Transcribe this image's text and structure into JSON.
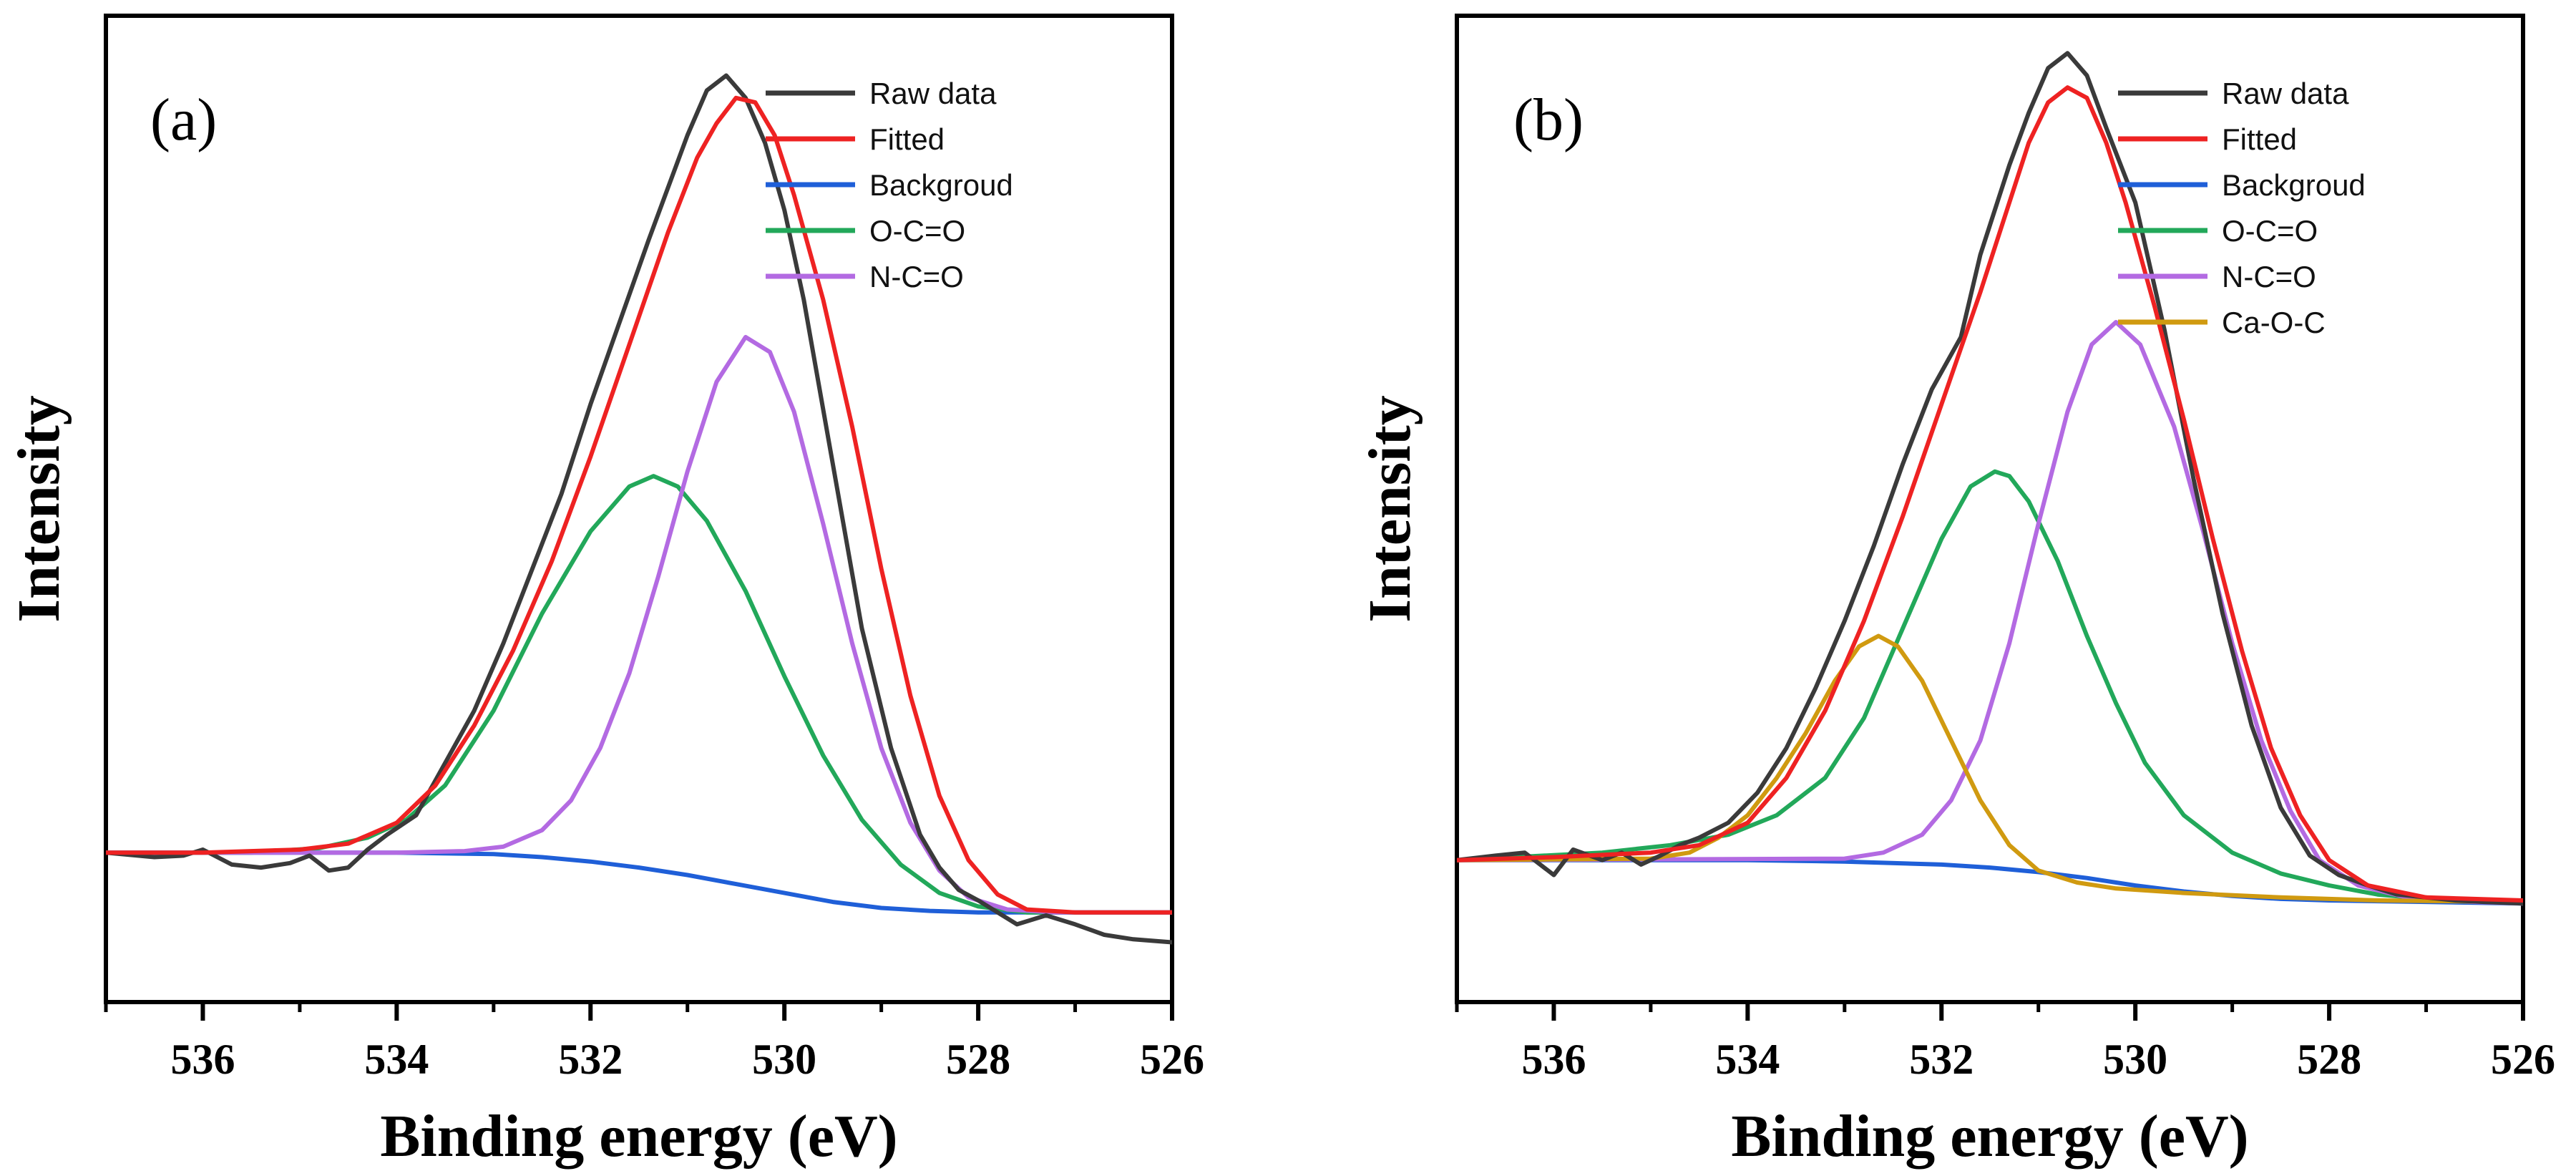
{
  "colors": {
    "raw": "#3a3a3a",
    "fitted": "#ee2222",
    "background": "#1f5fd8",
    "occ": "#22a85a",
    "ncc": "#b36ae2",
    "caoc": "#d09a10"
  },
  "chart_data": [
    {
      "type": "line",
      "panel_label": "(a)",
      "xlabel": "Binding energy (eV)",
      "ylabel": "Intensity",
      "xlim": [
        537,
        526
      ],
      "ylim": [
        -0.4,
        6.2
      ],
      "x_ticks": [
        "536",
        "534",
        "532",
        "530",
        "528",
        "526"
      ],
      "legend": [
        "Raw data",
        "Fitted",
        "Backgroud",
        "O-C=O",
        "N-C=O"
      ],
      "legend_position": "top-right",
      "series": [
        {
          "name": "Raw data",
          "color_key": "raw",
          "x": [
            537,
            536.5,
            536.2,
            536,
            535.7,
            535.4,
            535.1,
            534.9,
            534.7,
            534.5,
            534.3,
            534.1,
            533.8,
            533.5,
            533.2,
            532.9,
            532.6,
            532.3,
            532,
            531.7,
            531.4,
            531.2,
            531,
            530.8,
            530.6,
            530.4,
            530.2,
            530,
            529.8,
            529.5,
            529.2,
            528.9,
            528.6,
            528.4,
            528.2,
            528,
            527.8,
            527.6,
            527.3,
            527,
            526.7,
            526.4,
            526
          ],
          "y": [
            0.6,
            0.57,
            0.58,
            0.62,
            0.52,
            0.5,
            0.53,
            0.58,
            0.48,
            0.5,
            0.62,
            0.72,
            0.85,
            1.2,
            1.55,
            2.0,
            2.5,
            3.0,
            3.6,
            4.15,
            4.7,
            5.05,
            5.4,
            5.7,
            5.8,
            5.65,
            5.35,
            4.9,
            4.3,
            3.2,
            2.1,
            1.3,
            0.72,
            0.5,
            0.35,
            0.28,
            0.2,
            0.12,
            0.18,
            0.12,
            0.05,
            0.02,
            0.0
          ]
        },
        {
          "name": "Fitted",
          "color_key": "fitted",
          "x": [
            537,
            536,
            535,
            534.5,
            534,
            533.6,
            533.2,
            532.8,
            532.4,
            532,
            531.6,
            531.2,
            530.9,
            530.7,
            530.5,
            530.3,
            530.1,
            529.9,
            529.6,
            529.3,
            529,
            528.7,
            528.4,
            528.1,
            527.8,
            527.5,
            527,
            526
          ],
          "y": [
            0.6,
            0.6,
            0.62,
            0.66,
            0.8,
            1.05,
            1.45,
            1.95,
            2.55,
            3.25,
            4.0,
            4.75,
            5.25,
            5.48,
            5.65,
            5.62,
            5.4,
            5.0,
            4.3,
            3.45,
            2.5,
            1.65,
            0.98,
            0.55,
            0.32,
            0.22,
            0.2,
            0.2
          ]
        },
        {
          "name": "Backgroud",
          "color_key": "background",
          "x": [
            537,
            535,
            534,
            533,
            532.5,
            532,
            531.5,
            531,
            530.5,
            530,
            529.5,
            529,
            528.5,
            528,
            527,
            526
          ],
          "y": [
            0.6,
            0.6,
            0.6,
            0.59,
            0.57,
            0.54,
            0.5,
            0.45,
            0.39,
            0.33,
            0.27,
            0.23,
            0.21,
            0.2,
            0.2,
            0.2
          ]
        },
        {
          "name": "O-C=O",
          "color_key": "occ",
          "x": [
            537,
            535.5,
            534.8,
            534.3,
            533.9,
            533.5,
            533,
            532.5,
            532,
            531.6,
            531.35,
            531.1,
            530.8,
            530.4,
            530,
            529.6,
            529.2,
            528.8,
            528.4,
            528,
            527.5,
            527,
            526
          ],
          "y": [
            0.6,
            0.6,
            0.63,
            0.7,
            0.82,
            1.05,
            1.55,
            2.2,
            2.75,
            3.05,
            3.12,
            3.05,
            2.82,
            2.35,
            1.78,
            1.25,
            0.82,
            0.52,
            0.33,
            0.24,
            0.2,
            0.2,
            0.2
          ]
        },
        {
          "name": "N-C=O",
          "color_key": "ncc",
          "x": [
            537,
            534,
            533.3,
            532.9,
            532.5,
            532.2,
            531.9,
            531.6,
            531.3,
            531,
            530.7,
            530.4,
            530.15,
            529.9,
            529.6,
            529.3,
            529,
            528.7,
            528.4,
            528.1,
            527.7,
            527.2,
            526
          ],
          "y": [
            0.6,
            0.6,
            0.61,
            0.64,
            0.75,
            0.95,
            1.3,
            1.8,
            2.45,
            3.15,
            3.75,
            4.05,
            3.95,
            3.55,
            2.8,
            2.0,
            1.3,
            0.8,
            0.48,
            0.3,
            0.22,
            0.2,
            0.2
          ]
        }
      ]
    },
    {
      "type": "line",
      "panel_label": "(b)",
      "xlabel": "Binding energy (eV)",
      "ylabel": "Intensity",
      "xlim": [
        537,
        526
      ],
      "ylim": [
        -0.4,
        6.2
      ],
      "x_ticks": [
        "536",
        "534",
        "532",
        "530",
        "528",
        "526"
      ],
      "legend": [
        "Raw data",
        "Fitted",
        "Backgroud",
        "O-C=O",
        "N-C=O",
        "Ca-O-C"
      ],
      "legend_position": "top-right",
      "series": [
        {
          "name": "Raw data",
          "color_key": "raw",
          "x": [
            537,
            536.6,
            536.3,
            536,
            535.8,
            535.5,
            535.3,
            535.1,
            534.9,
            534.7,
            534.5,
            534.2,
            533.9,
            533.6,
            533.3,
            533,
            532.7,
            532.4,
            532.1,
            531.8,
            531.6,
            531.3,
            531.1,
            530.9,
            530.7,
            530.5,
            530.3,
            530,
            529.7,
            529.4,
            529.1,
            528.8,
            528.5,
            528.2,
            527.9,
            527.6,
            527.3,
            527,
            526.7,
            526.4,
            526
          ],
          "y": [
            0.55,
            0.58,
            0.6,
            0.45,
            0.62,
            0.55,
            0.6,
            0.52,
            0.58,
            0.65,
            0.7,
            0.8,
            1.0,
            1.3,
            1.7,
            2.15,
            2.65,
            3.2,
            3.7,
            4.05,
            4.6,
            5.2,
            5.55,
            5.85,
            5.95,
            5.8,
            5.45,
            4.95,
            4.1,
            3.1,
            2.2,
            1.45,
            0.9,
            0.58,
            0.45,
            0.38,
            0.32,
            0.3,
            0.28,
            0.27,
            0.26
          ]
        },
        {
          "name": "Fitted",
          "color_key": "fitted",
          "x": [
            537,
            536,
            535,
            534.5,
            534,
            533.6,
            533.2,
            532.8,
            532.4,
            532,
            531.6,
            531.3,
            531.1,
            530.9,
            530.7,
            530.5,
            530.3,
            530.1,
            529.8,
            529.5,
            529.2,
            528.9,
            528.6,
            528.3,
            528,
            527.6,
            527,
            526
          ],
          "y": [
            0.55,
            0.57,
            0.6,
            0.65,
            0.8,
            1.1,
            1.55,
            2.15,
            2.85,
            3.6,
            4.35,
            4.95,
            5.35,
            5.62,
            5.72,
            5.65,
            5.35,
            4.95,
            4.25,
            3.5,
            2.7,
            1.95,
            1.3,
            0.85,
            0.55,
            0.38,
            0.3,
            0.28
          ]
        },
        {
          "name": "Backgroud",
          "color_key": "background",
          "x": [
            537,
            535,
            534,
            533,
            532,
            531.5,
            531,
            530.5,
            530,
            529.5,
            529,
            528.5,
            528,
            527,
            526
          ],
          "y": [
            0.55,
            0.55,
            0.55,
            0.54,
            0.52,
            0.5,
            0.47,
            0.43,
            0.38,
            0.34,
            0.31,
            0.29,
            0.28,
            0.27,
            0.26
          ]
        },
        {
          "name": "O-C=O",
          "color_key": "occ",
          "x": [
            537,
            535.5,
            534.8,
            534.2,
            533.7,
            533.2,
            532.8,
            532.4,
            532,
            531.7,
            531.45,
            531.3,
            531.1,
            530.8,
            530.5,
            530.2,
            529.9,
            529.5,
            529,
            528.5,
            528,
            527.5,
            526.8,
            526
          ],
          "y": [
            0.55,
            0.6,
            0.65,
            0.72,
            0.85,
            1.1,
            1.5,
            2.1,
            2.7,
            3.05,
            3.15,
            3.12,
            2.95,
            2.55,
            2.05,
            1.6,
            1.2,
            0.85,
            0.6,
            0.46,
            0.38,
            0.32,
            0.28,
            0.26
          ]
        },
        {
          "name": "N-C=O",
          "color_key": "ncc",
          "x": [
            537,
            533,
            532.6,
            532.2,
            531.9,
            531.6,
            531.3,
            531,
            530.7,
            530.45,
            530.2,
            529.95,
            529.6,
            529.3,
            529,
            528.7,
            528.4,
            528.1,
            527.7,
            527.2,
            526.5,
            526
          ],
          "y": [
            0.55,
            0.56,
            0.6,
            0.72,
            0.95,
            1.35,
            2.0,
            2.8,
            3.55,
            4.0,
            4.15,
            4.0,
            3.45,
            2.75,
            2.0,
            1.35,
            0.88,
            0.55,
            0.38,
            0.3,
            0.27,
            0.26
          ]
        },
        {
          "name": "Ca-O-C",
          "color_key": "caoc",
          "x": [
            537,
            535,
            534.6,
            534.3,
            534,
            533.7,
            533.4,
            533.1,
            532.85,
            532.65,
            532.45,
            532.2,
            531.9,
            531.6,
            531.3,
            531,
            530.6,
            530.2,
            529.5,
            528.5,
            527.5,
            526
          ],
          "y": [
            0.55,
            0.56,
            0.6,
            0.7,
            0.85,
            1.1,
            1.4,
            1.75,
            1.98,
            2.05,
            1.98,
            1.75,
            1.35,
            0.95,
            0.65,
            0.48,
            0.4,
            0.36,
            0.33,
            0.3,
            0.28,
            0.27
          ]
        }
      ]
    }
  ]
}
